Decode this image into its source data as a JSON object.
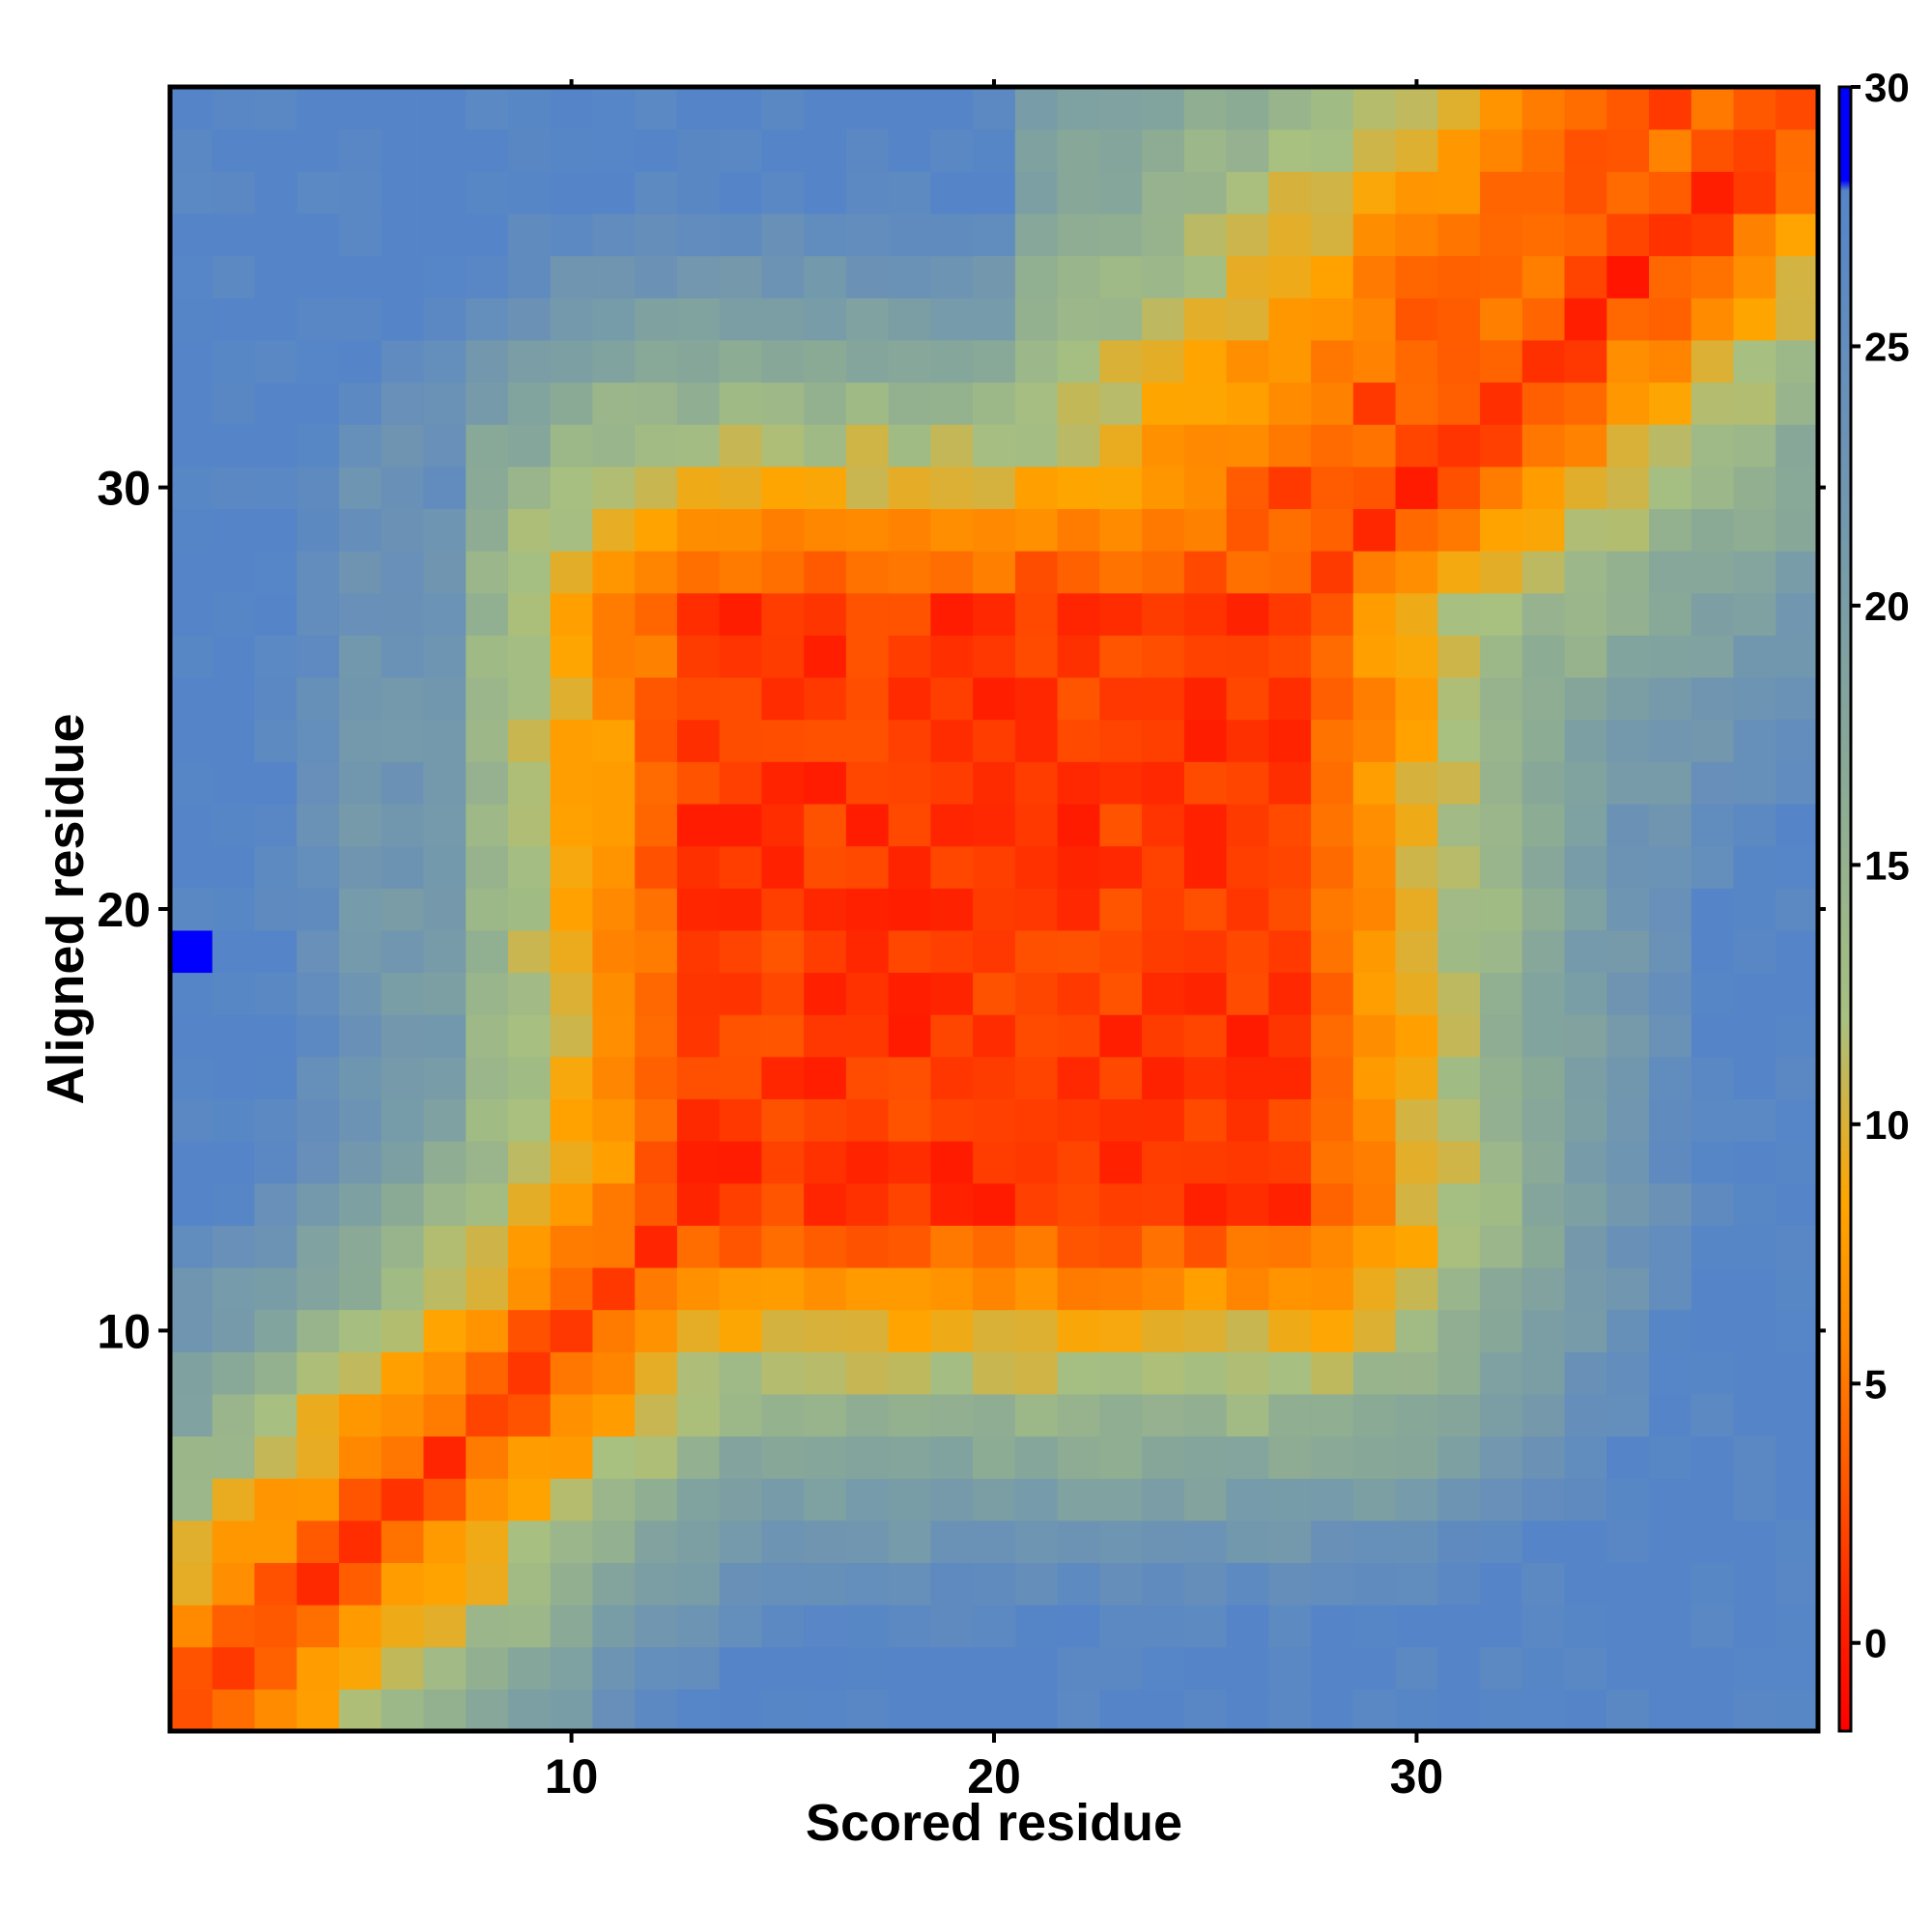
{
  "chart_data": {
    "type": "heatmap",
    "title": "",
    "xlabel": "Scored residue",
    "ylabel": "Aligned residue",
    "x_ticks": [
      10,
      20,
      30
    ],
    "y_ticks": [
      10,
      20,
      30
    ],
    "x_range": [
      1,
      39
    ],
    "y_range": [
      1,
      39
    ],
    "colorbar": {
      "ticks": [
        0,
        5,
        10,
        15,
        20,
        25,
        30
      ],
      "range": [
        -1.7,
        30
      ],
      "stops": [
        {
          "v": -1.7,
          "color": "#ff0000"
        },
        {
          "v": 0.5,
          "color": "#ff2200"
        },
        {
          "v": 3.0,
          "color": "#ff5500"
        },
        {
          "v": 6.0,
          "color": "#ff8800"
        },
        {
          "v": 8.5,
          "color": "#ffa500"
        },
        {
          "v": 12.0,
          "color": "#a8c080"
        },
        {
          "v": 17.0,
          "color": "#88a898"
        },
        {
          "v": 24.0,
          "color": "#6890b8"
        },
        {
          "v": 28.0,
          "color": "#5585c8"
        },
        {
          "v": 28.2,
          "color": "#0000ff"
        },
        {
          "v": 30.0,
          "color": "#0000ff"
        }
      ]
    },
    "model": {
      "note_scale": "values in color-bar units",
      "top_block_center": [
        20,
        20
      ],
      "top_block_halfwidth": 8,
      "diagonal_width": 1.2
    },
    "special_cells": [
      {
        "x": 1,
        "y": 19,
        "value": 30
      }
    ]
  }
}
